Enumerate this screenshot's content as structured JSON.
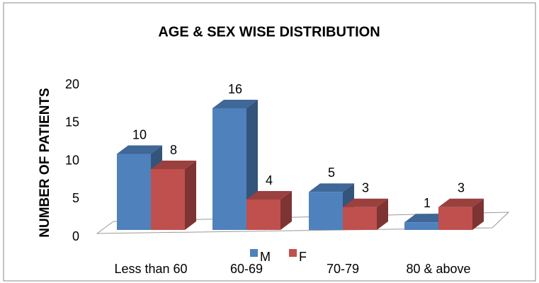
{
  "chart_data": {
    "type": "bar3d",
    "title": "AGE & SEX WISE DISTRIBUTION",
    "y_label": "NUMBER OF PATIENTS",
    "categories": [
      "Less than 60",
      "60-69",
      "70-79",
      "80 & above"
    ],
    "series": [
      {
        "name": "M",
        "color": "#4f81bd",
        "values": [
          10,
          16,
          5,
          1
        ]
      },
      {
        "name": "F",
        "color": "#c0504d",
        "values": [
          8,
          4,
          3,
          3
        ]
      }
    ],
    "ylim": [
      0,
      20
    ],
    "yticks": [
      0,
      5,
      10,
      15,
      20
    ],
    "grid": false,
    "legend": "bottom"
  }
}
